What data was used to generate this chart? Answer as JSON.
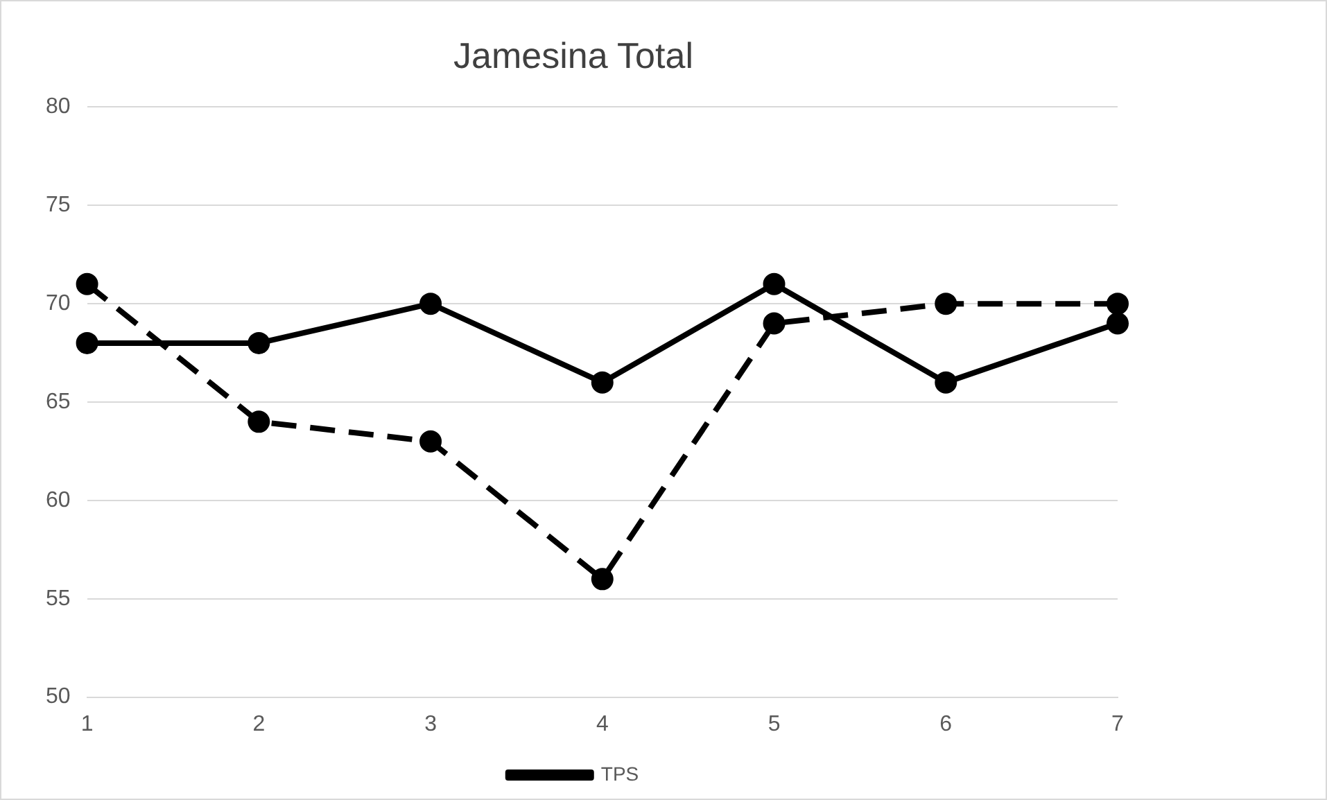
{
  "chart_data": {
    "type": "line",
    "title": "Jamesina Total",
    "categories": [
      "1",
      "2",
      "3",
      "4",
      "5",
      "6",
      "7"
    ],
    "series": [
      {
        "name": "TPS",
        "color": "#000000",
        "line_style": "solid",
        "values": [
          68,
          68,
          70,
          66,
          71,
          66,
          69
        ]
      },
      {
        "color": "#000000",
        "line_style": "dashed",
        "values": [
          71,
          64,
          63,
          56,
          69,
          70,
          70
        ]
      }
    ],
    "ylim": [
      50,
      80
    ],
    "yticks": [
      50,
      55,
      60,
      65,
      70,
      75,
      80
    ],
    "grid": "y",
    "legend": "bottom",
    "marker": "circle"
  }
}
